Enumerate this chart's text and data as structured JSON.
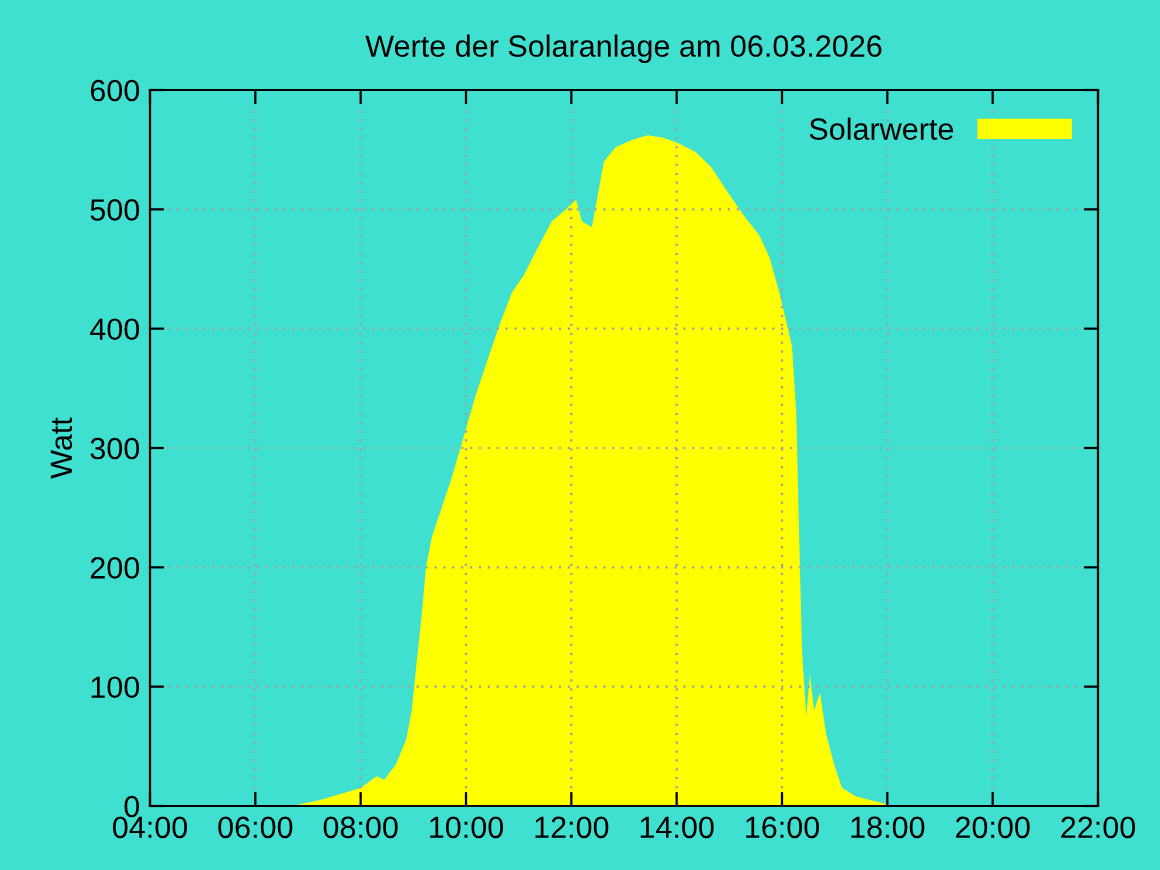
{
  "chart_data": {
    "type": "area",
    "title": "Werte der Solaranlage am 06.03.2026",
    "ylabel": "Watt",
    "x": [
      6.7,
      7.23,
      8.0,
      8.3,
      8.45,
      8.67,
      8.86,
      8.97,
      9.05,
      9.16,
      9.24,
      9.35,
      9.5,
      9.73,
      9.96,
      10.19,
      10.42,
      10.65,
      10.87,
      11.1,
      11.33,
      11.63,
      11.9,
      12.09,
      12.2,
      12.39,
      12.62,
      12.84,
      13.15,
      13.45,
      13.75,
      14.05,
      14.36,
      14.66,
      14.96,
      15.27,
      15.57,
      15.76,
      15.95,
      16.06,
      16.19,
      16.27,
      16.34,
      16.38,
      16.46,
      16.53,
      16.61,
      16.72,
      16.84,
      16.99,
      17.14,
      17.41,
      17.67,
      17.94,
      18.05
    ],
    "series": [
      {
        "name": "Solarwerte",
        "color": "#ffff00",
        "values": [
          0,
          5,
          15,
          25,
          22,
          35,
          55,
          80,
          115,
          160,
          200,
          225,
          245,
          275,
          310,
          345,
          375,
          405,
          430,
          445,
          465,
          490,
          500,
          508,
          490,
          485,
          540,
          552,
          558,
          562,
          560,
          555,
          548,
          535,
          515,
          495,
          478,
          460,
          430,
          410,
          385,
          330,
          200,
          130,
          75,
          110,
          80,
          95,
          60,
          35,
          15,
          8,
          5,
          2,
          0
        ]
      }
    ],
    "xlim": [
      4,
      22
    ],
    "xticks": [
      {
        "value": 4,
        "label": "04:00"
      },
      {
        "value": 6,
        "label": "06:00"
      },
      {
        "value": 8,
        "label": "08:00"
      },
      {
        "value": 10,
        "label": "10:00"
      },
      {
        "value": 12,
        "label": "12:00"
      },
      {
        "value": 14,
        "label": "14:00"
      },
      {
        "value": 16,
        "label": "16:00"
      },
      {
        "value": 18,
        "label": "18:00"
      },
      {
        "value": 20,
        "label": "20:00"
      },
      {
        "value": 22,
        "label": "22:00"
      }
    ],
    "ylim": [
      0,
      600
    ],
    "yticks": [
      0,
      100,
      200,
      300,
      400,
      500,
      600
    ],
    "grid": true,
    "legend": "top right"
  }
}
